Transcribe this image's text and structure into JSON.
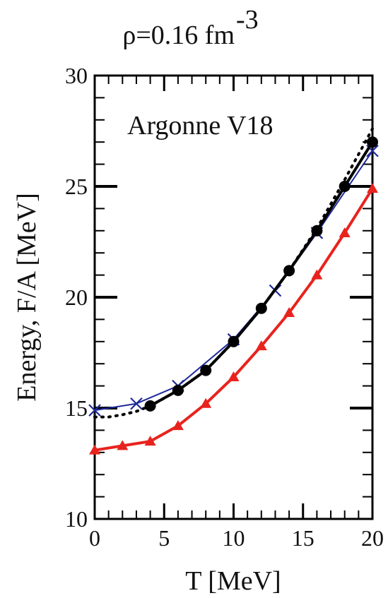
{
  "chart_data": {
    "type": "line",
    "title": "ρ=0.16 fm",
    "title_superscript": "-3",
    "xlabel": "T [MeV]",
    "ylabel": "Energy, F/A [MeV]",
    "annotation": "Argonne V18",
    "xlim": [
      0,
      20
    ],
    "ylim": [
      10,
      30
    ],
    "xticks": [
      0,
      5,
      10,
      15,
      20
    ],
    "yticks": [
      10,
      15,
      20,
      25,
      30
    ],
    "grid": false,
    "series": [
      {
        "color": "#000000",
        "style": "solid",
        "marker": "circle",
        "x": [
          4,
          6,
          8,
          10,
          12,
          14,
          16,
          18,
          20
        ],
        "y": [
          15.1,
          15.8,
          16.7,
          18.0,
          19.5,
          21.2,
          23.0,
          25.0,
          27.0
        ]
      },
      {
        "color": "#000000",
        "style": "dotted",
        "marker": "none",
        "x": [
          0,
          1,
          2,
          3,
          4,
          6,
          8,
          10,
          12,
          14,
          16,
          18,
          20
        ],
        "y": [
          14.6,
          14.6,
          14.7,
          14.85,
          15.1,
          15.8,
          16.7,
          18.0,
          19.5,
          21.2,
          23.1,
          25.3,
          27.6
        ]
      },
      {
        "color": "#1f2a9a",
        "style": "solid",
        "marker": "x",
        "x": [
          0,
          3,
          6,
          10,
          13,
          16,
          20
        ],
        "y": [
          14.9,
          15.2,
          16.0,
          18.1,
          20.3,
          22.9,
          26.6
        ]
      },
      {
        "color": "#e8231e",
        "style": "solid",
        "marker": "triangle",
        "x": [
          0,
          2,
          4,
          6,
          8,
          10,
          12,
          14,
          16,
          18,
          20
        ],
        "y": [
          13.1,
          13.3,
          13.5,
          14.2,
          15.2,
          16.4,
          17.8,
          19.3,
          21.0,
          22.9,
          24.9
        ]
      }
    ]
  }
}
